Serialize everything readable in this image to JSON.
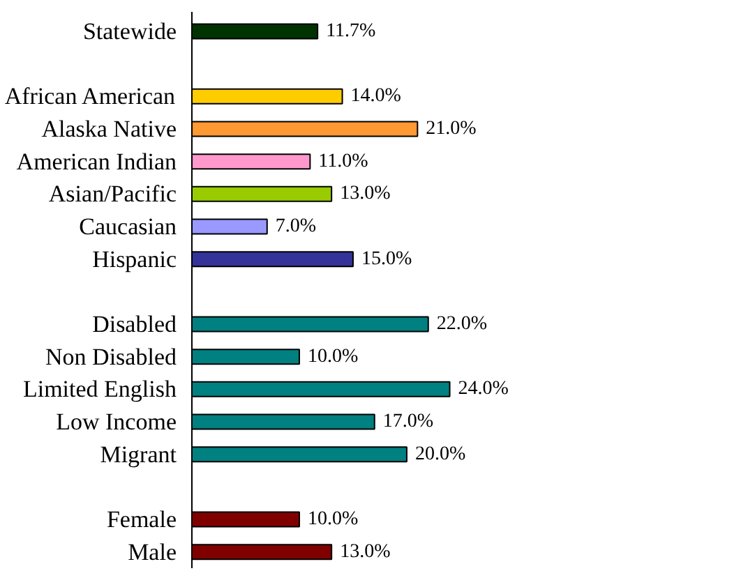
{
  "chart_data": {
    "type": "bar",
    "orientation": "horizontal",
    "categories": [
      "Statewide",
      null,
      "African American",
      "Alaska Native",
      "American Indian",
      "Asian/Pacific",
      "Caucasian",
      "Hispanic",
      null,
      "Disabled",
      "Non Disabled",
      "Limited English",
      "Low Income",
      "Migrant",
      null,
      "Female",
      "Male"
    ],
    "values": [
      11.7,
      null,
      14.0,
      21.0,
      11.0,
      13.0,
      7.0,
      15.0,
      null,
      22.0,
      10.0,
      24.0,
      17.0,
      20.0,
      null,
      10.0,
      13.0
    ],
    "value_labels": [
      "11.7%",
      null,
      "14.0%",
      "21.0%",
      "11.0%",
      "13.0%",
      "7.0%",
      "15.0%",
      null,
      "22.0%",
      "10.0%",
      "24.0%",
      "17.0%",
      "20.0%",
      null,
      "10.0%",
      "13.0%"
    ],
    "colors": [
      "#003300",
      null,
      "#ffcc00",
      "#ff9933",
      "#ff99cc",
      "#99cc00",
      "#9999ff",
      "#333399",
      null,
      "#008080",
      "#008080",
      "#008080",
      "#008080",
      "#008080",
      null,
      "#800000",
      "#800000"
    ],
    "grid": false
  }
}
